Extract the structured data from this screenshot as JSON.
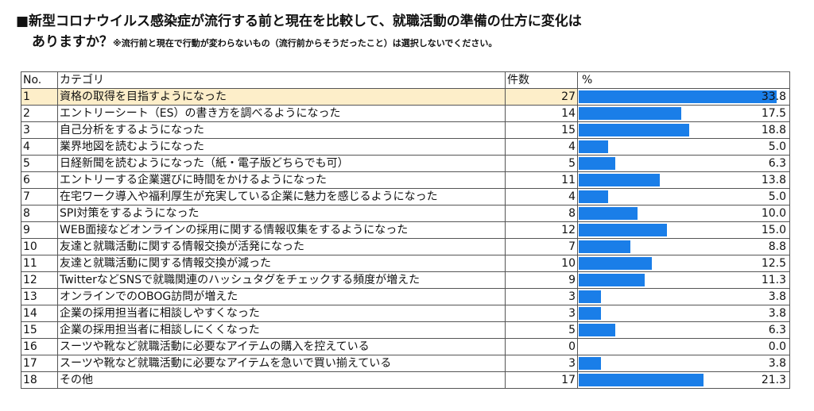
{
  "title": {
    "line1": "■新型コロナウイルス感染症が流行する前と現在を比較して、就職活動の準備の仕方に変化は",
    "line2": "ありますか？",
    "note": "※流行前と現在で行動が変わらないもの（流行前からそうだったこと）は選択しないでください。"
  },
  "chart_data": {
    "type": "bar",
    "headers": {
      "no": "No.",
      "category": "カテゴリ",
      "count": "件数",
      "percent": "%"
    },
    "xlim": [
      0,
      35
    ],
    "colors": {
      "bar": "#1a7ee8",
      "highlight_row": "#fdeec9"
    },
    "rows": [
      {
        "no": "1",
        "category": "資格の取得を目指すようになった",
        "count": "27",
        "percent": 33.8,
        "percent_label": "33.8"
      },
      {
        "no": "2",
        "category": "エントリーシート（ES）の書き方を調べるようになった",
        "count": "14",
        "percent": 17.5,
        "percent_label": "17.5"
      },
      {
        "no": "3",
        "category": "自己分析をするようになった",
        "count": "15",
        "percent": 18.8,
        "percent_label": "18.8"
      },
      {
        "no": "4",
        "category": "業界地図を読むようになった",
        "count": "4",
        "percent": 5.0,
        "percent_label": "5.0"
      },
      {
        "no": "5",
        "category": "日経新聞を読むようになった（紙・電子版どちらでも可）",
        "count": "5",
        "percent": 6.3,
        "percent_label": "6.3"
      },
      {
        "no": "6",
        "category": "エントリーする企業選びに時間をかけるようになった",
        "count": "11",
        "percent": 13.8,
        "percent_label": "13.8"
      },
      {
        "no": "7",
        "category": "在宅ワーク導入や福利厚生が充実している企業に魅力を感じるようになった",
        "count": "4",
        "percent": 5.0,
        "percent_label": "5.0"
      },
      {
        "no": "8",
        "category": "SPI対策をするようになった",
        "count": "8",
        "percent": 10.0,
        "percent_label": "10.0"
      },
      {
        "no": "9",
        "category": "WEB面接などオンラインの採用に関する情報収集をするようになった",
        "count": "12",
        "percent": 15.0,
        "percent_label": "15.0"
      },
      {
        "no": "10",
        "category": "友達と就職活動に関する情報交換が活発になった",
        "count": "7",
        "percent": 8.8,
        "percent_label": "8.8"
      },
      {
        "no": "11",
        "category": "友達と就職活動に関する情報交換が減った",
        "count": "10",
        "percent": 12.5,
        "percent_label": "12.5"
      },
      {
        "no": "12",
        "category": "TwitterなどSNSで就職関連のハッシュタグをチェックする頻度が増えた",
        "count": "9",
        "percent": 11.3,
        "percent_label": "11.3"
      },
      {
        "no": "13",
        "category": "オンラインでのOBOG訪問が増えた",
        "count": "3",
        "percent": 3.8,
        "percent_label": "3.8"
      },
      {
        "no": "14",
        "category": "企業の採用担当者に相談しやすくなった",
        "count": "3",
        "percent": 3.8,
        "percent_label": "3.8"
      },
      {
        "no": "15",
        "category": "企業の採用担当者に相談しにくくなった",
        "count": "5",
        "percent": 6.3,
        "percent_label": "6.3"
      },
      {
        "no": "16",
        "category": "スーツや靴など就職活動に必要なアイテムの購入を控えている",
        "count": "0",
        "percent": 0.0,
        "percent_label": "0.0"
      },
      {
        "no": "17",
        "category": "スーツや靴など就職活動に必要なアイテムを急いで買い揃えている",
        "count": "3",
        "percent": 3.8,
        "percent_label": "3.8"
      },
      {
        "no": "18",
        "category": "その他",
        "count": "17",
        "percent": 21.3,
        "percent_label": "21.3"
      }
    ]
  }
}
